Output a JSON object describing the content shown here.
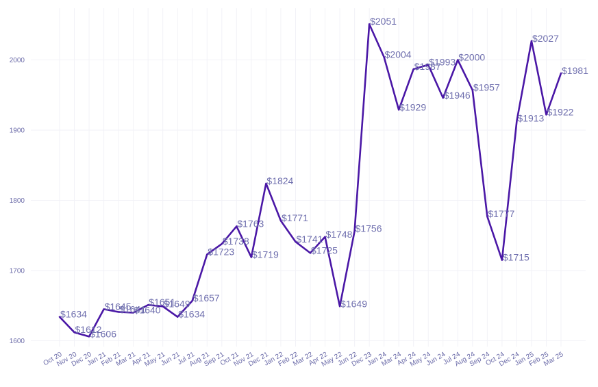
{
  "chart_data": {
    "type": "line",
    "title": "",
    "xlabel": "",
    "ylabel": "",
    "categories": [
      "Oct 20",
      "Nov 20",
      "Dec 20",
      "Jan 21",
      "Feb 21",
      "Mar 21",
      "Apr 21",
      "May 21",
      "Jun 21",
      "Jul 21",
      "Aug 21",
      "Sep 21",
      "Oct 21",
      "Nov 21",
      "Dec 21",
      "Jan 22",
      "Feb 22",
      "Mar 22",
      "Apr 22",
      "May 22",
      "Jun 22",
      "Dec 23",
      "Jan 24",
      "Mar 24",
      "Apr 24",
      "May 24",
      "Jun 24",
      "Jul 24",
      "Aug 24",
      "Sep 24",
      "Oct 24",
      "Dec 24",
      "Jan 25",
      "Feb 25",
      "Mar 25"
    ],
    "series": [
      {
        "values": [
          1634,
          1612,
          1606,
          1645,
          1641,
          1640,
          1651,
          1649,
          1634,
          1657,
          1723,
          1738,
          1763,
          1719,
          1824,
          1771,
          1741,
          1725,
          1748,
          1649,
          1756,
          2051,
          2004,
          1929,
          1987,
          1993,
          1946,
          2000,
          1957,
          1777,
          1715,
          1913,
          2027,
          1922,
          1981
        ],
        "labels": [
          "$1634",
          "$1612",
          "$1606",
          "$1645",
          "$1641",
          "$1640",
          "$1651",
          "$1649",
          "$1634",
          "$1657",
          "$1723",
          "$1738",
          "$1763",
          "$1719",
          "$1824",
          "$1771",
          "$1741",
          "$1725",
          "$1748",
          "$1649",
          "$1756",
          "$2051",
          "$2004",
          "$1929",
          "$1987",
          "$1993",
          "$1946",
          "$2000",
          "$1957",
          "$1777",
          "$1715",
          "$1913",
          "$2027",
          "$1922",
          "$1981"
        ],
        "color": "#4a17a6"
      }
    ],
    "yticks": [
      1600,
      1700,
      1800,
      1900,
      2000
    ],
    "ylim": [
      1585,
      2070
    ],
    "grid": true,
    "legend": "none"
  }
}
